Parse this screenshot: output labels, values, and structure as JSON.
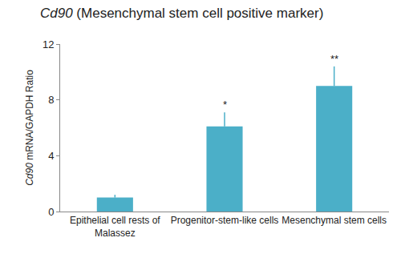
{
  "chart_data": {
    "type": "bar",
    "title": "Cd90 (Mesenchymal stem cell positive marker)",
    "y_label": "Cd90 mRNA/GAPDH Ratio",
    "categories": [
      "Epithelial cell rests of Malassez",
      "Progenitor-stem-like cells",
      "Mesenchymal stem cells"
    ],
    "values": [
      1.0,
      6.1,
      9.0
    ],
    "errors": [
      0.2,
      1.0,
      1.4
    ],
    "significance": [
      null,
      "*",
      "**"
    ],
    "color": "#4bafc8",
    "ylim": [
      0,
      12
    ],
    "yticks": [
      0,
      4,
      8,
      12
    ],
    "grid": false
  }
}
